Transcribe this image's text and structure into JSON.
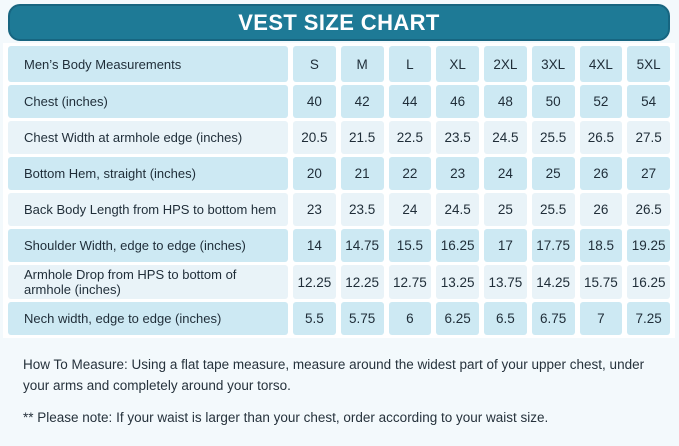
{
  "colors": {
    "accent_teal": "#1e7a96",
    "accent_teal_border": "#176580",
    "row_dark_blue": "#cde9f3",
    "row_light_blue": "#e9f3f8",
    "text_dark": "#1f2d38",
    "page_background": "#f3f9fc",
    "title_text": "#ffffff"
  },
  "chart_data": {
    "type": "table",
    "title": "VEST SIZE CHART",
    "columns": [
      "Men’s Body Measurements",
      "S",
      "M",
      "L",
      "XL",
      "2XL",
      "3XL",
      "4XL",
      "5XL"
    ],
    "rows": [
      {
        "label": "Chest (inches)",
        "values": [
          "40",
          "42",
          "44",
          "46",
          "48",
          "50",
          "52",
          "54"
        ]
      },
      {
        "label": "Chest Width at armhole edge (inches)",
        "values": [
          "20.5",
          "21.5",
          "22.5",
          "23.5",
          "24.5",
          "25.5",
          "26.5",
          "27.5"
        ]
      },
      {
        "label": "Bottom Hem, straight (inches)",
        "values": [
          "20",
          "21",
          "22",
          "23",
          "24",
          "25",
          "26",
          "27"
        ]
      },
      {
        "label": "Back Body Length from HPS to bottom hem",
        "values": [
          "23",
          "23.5",
          "24",
          "24.5",
          "25",
          "25.5",
          "26",
          "26.5"
        ]
      },
      {
        "label": "Shoulder Width, edge to edge (inches)",
        "values": [
          "14",
          "14.75",
          "15.5",
          "16.25",
          "17",
          "17.75",
          "18.5",
          "19.25"
        ]
      },
      {
        "label": "Armhole Drop from HPS to bottom of armhole (inches)",
        "values": [
          "12.25",
          "12.25",
          "12.75",
          "13.25",
          "13.75",
          "14.25",
          "15.75",
          "16.25"
        ]
      },
      {
        "label": "Nech width, edge to edge (inches)",
        "values": [
          "5.5",
          "5.75",
          "6",
          "6.25",
          "6.5",
          "6.75",
          "7",
          "7.25"
        ]
      }
    ],
    "notes": [
      "How To Measure: Using a flat tape measure, measure around the widest part of your upper chest, under your arms and completely around your torso.",
      "** Please note: If your waist is larger than your chest, order according to your waist size."
    ]
  }
}
